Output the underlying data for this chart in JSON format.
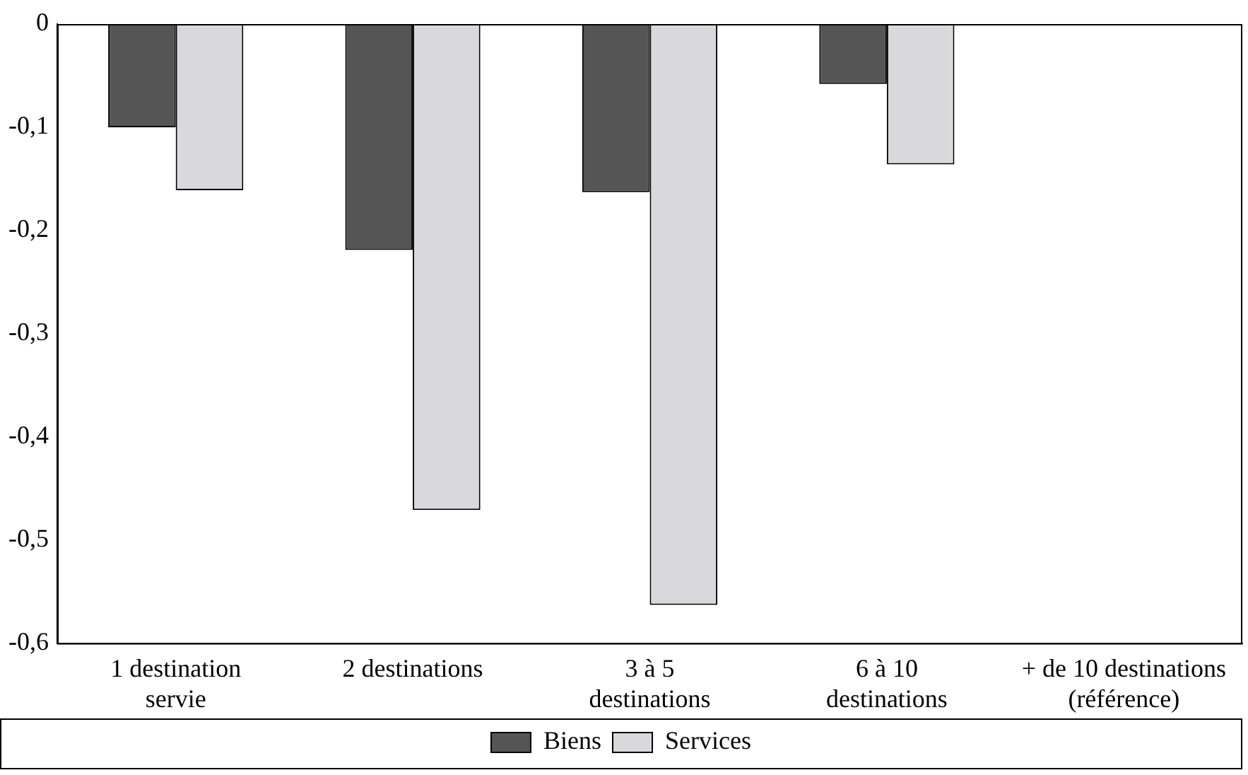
{
  "chart_data": {
    "type": "bar",
    "categories": [
      "1 destination\nservie",
      "2 destinations",
      "3 à 5\ndestinations",
      "6 à 10\ndestinations",
      "+ de 10 destinations\n(référence)"
    ],
    "series": [
      {
        "name": "Biens",
        "color": "#555555",
        "values": [
          -0.1,
          -0.219,
          -0.163,
          -0.058,
          0
        ]
      },
      {
        "name": "Services",
        "color": "#d9d9dc",
        "values": [
          -0.161,
          -0.471,
          -0.563,
          -0.136,
          0
        ]
      }
    ],
    "ylim": [
      -0.6,
      0
    ],
    "yticks": [
      {
        "value": 0,
        "label": "0"
      },
      {
        "value": -0.1,
        "label": "-0,1"
      },
      {
        "value": -0.2,
        "label": "-0,2"
      },
      {
        "value": -0.3,
        "label": "-0,3"
      },
      {
        "value": -0.4,
        "label": "-0,4"
      },
      {
        "value": -0.5,
        "label": "-0,5"
      },
      {
        "value": -0.6,
        "label": "-0,6"
      }
    ],
    "grid": false,
    "legend": "bottom"
  }
}
